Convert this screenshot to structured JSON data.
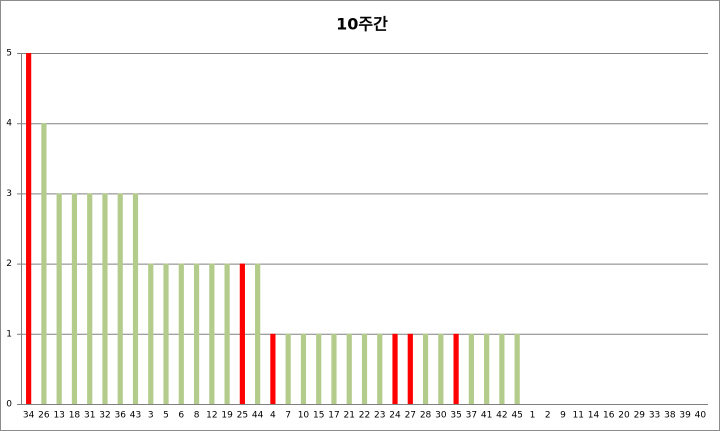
{
  "chart_data": {
    "type": "bar",
    "title": "10주간",
    "categories": [
      "34",
      "26",
      "13",
      "18",
      "31",
      "32",
      "36",
      "43",
      "3",
      "5",
      "6",
      "8",
      "12",
      "19",
      "25",
      "44",
      "4",
      "7",
      "10",
      "15",
      "17",
      "21",
      "22",
      "23",
      "24",
      "27",
      "28",
      "30",
      "35",
      "37",
      "41",
      "42",
      "45",
      "1",
      "2",
      "9",
      "11",
      "14",
      "16",
      "20",
      "29",
      "33",
      "38",
      "39",
      "40"
    ],
    "values": [
      5,
      4,
      3,
      3,
      3,
      3,
      3,
      3,
      2,
      2,
      2,
      2,
      2,
      2,
      2,
      2,
      1,
      1,
      1,
      1,
      1,
      1,
      1,
      1,
      1,
      1,
      1,
      1,
      1,
      1,
      1,
      1,
      1,
      0,
      0,
      0,
      0,
      0,
      0,
      0,
      0,
      0,
      0,
      0,
      0
    ],
    "colors": [
      "#ff0000",
      "#b3cc8c",
      "#b3cc8c",
      "#b3cc8c",
      "#b3cc8c",
      "#b3cc8c",
      "#b3cc8c",
      "#b3cc8c",
      "#b3cc8c",
      "#b3cc8c",
      "#b3cc8c",
      "#b3cc8c",
      "#b3cc8c",
      "#b3cc8c",
      "#ff0000",
      "#b3cc8c",
      "#ff0000",
      "#b3cc8c",
      "#b3cc8c",
      "#b3cc8c",
      "#b3cc8c",
      "#b3cc8c",
      "#b3cc8c",
      "#b3cc8c",
      "#ff0000",
      "#ff0000",
      "#b3cc8c",
      "#b3cc8c",
      "#ff0000",
      "#b3cc8c",
      "#b3cc8c",
      "#b3cc8c",
      "#b3cc8c",
      "#b3cc8c",
      "#b3cc8c",
      "#b3cc8c",
      "#b3cc8c",
      "#b3cc8c",
      "#b3cc8c",
      "#b3cc8c",
      "#b3cc8c",
      "#b3cc8c",
      "#b3cc8c",
      "#b3cc8c",
      "#b3cc8c"
    ],
    "ylim": [
      0,
      5
    ],
    "yticks": [
      0,
      1,
      2,
      3,
      4,
      5
    ],
    "grid": true
  }
}
